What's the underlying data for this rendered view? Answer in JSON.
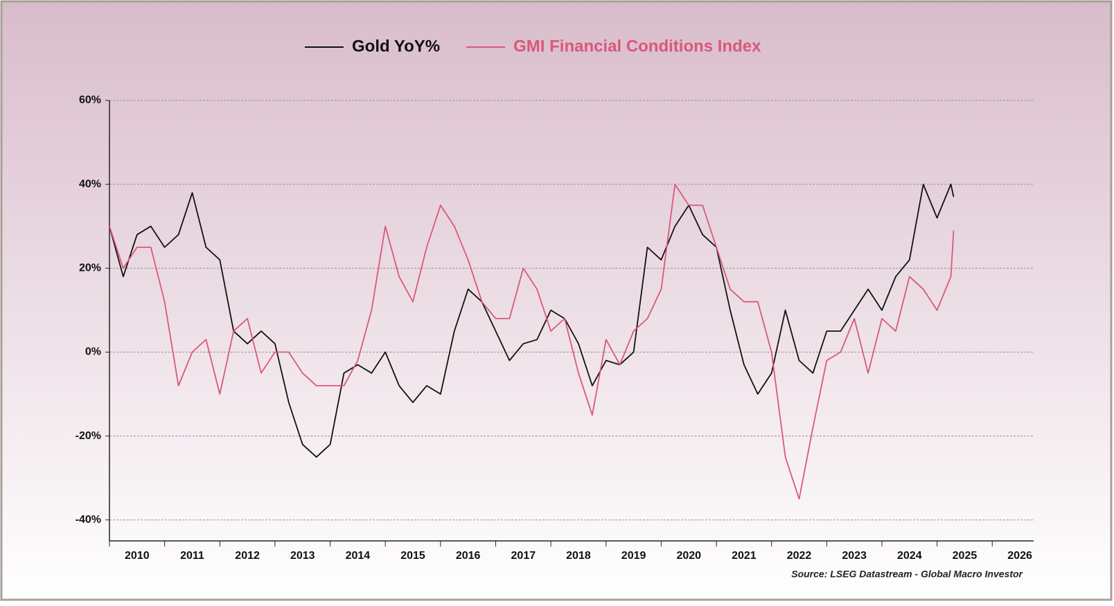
{
  "chart_data": {
    "type": "line",
    "x": [
      2010,
      2010.25,
      2010.5,
      2010.75,
      2011,
      2011.25,
      2011.5,
      2011.75,
      2012,
      2012.25,
      2012.5,
      2012.75,
      2013,
      2013.25,
      2013.5,
      2013.75,
      2014,
      2014.25,
      2014.5,
      2014.75,
      2015,
      2015.25,
      2015.5,
      2015.75,
      2016,
      2016.25,
      2016.5,
      2016.75,
      2017,
      2017.25,
      2017.5,
      2017.75,
      2018,
      2018.25,
      2018.5,
      2018.75,
      2019,
      2019.25,
      2019.5,
      2019.75,
      2020,
      2020.25,
      2020.5,
      2020.75,
      2021,
      2021.25,
      2021.5,
      2021.75,
      2022,
      2022.25,
      2022.5,
      2022.75,
      2023,
      2023.25,
      2023.5,
      2023.75,
      2024,
      2024.25,
      2024.5,
      2024.75,
      2025,
      2025.25,
      2025.3
    ],
    "series": [
      {
        "name": "Gold YoY%",
        "color": "#111111",
        "values": [
          30,
          18,
          28,
          30,
          25,
          28,
          38,
          25,
          22,
          5,
          2,
          5,
          2,
          -12,
          -22,
          -25,
          -22,
          -5,
          -3,
          -5,
          0,
          -8,
          -12,
          -8,
          -10,
          5,
          15,
          12,
          5,
          -2,
          2,
          3,
          10,
          8,
          2,
          -8,
          -2,
          -3,
          0,
          25,
          22,
          30,
          35,
          28,
          25,
          10,
          -3,
          -10,
          -5,
          10,
          -2,
          -5,
          5,
          5,
          10,
          15,
          10,
          18,
          22,
          40,
          32,
          40,
          37
        ]
      },
      {
        "name": "GMI Financial Conditions Index",
        "color": "#d9587a",
        "values": [
          30,
          20,
          25,
          25,
          12,
          -8,
          0,
          3,
          -10,
          5,
          8,
          -5,
          0,
          0,
          -5,
          -8,
          -8,
          -8,
          -2,
          10,
          30,
          18,
          12,
          25,
          35,
          30,
          22,
          12,
          8,
          8,
          20,
          15,
          5,
          8,
          -5,
          -15,
          3,
          -3,
          5,
          8,
          15,
          40,
          35,
          35,
          25,
          15,
          12,
          12,
          0,
          -25,
          -35,
          -18,
          -2,
          0,
          8,
          -5,
          8,
          5,
          18,
          15,
          10,
          18,
          29
        ]
      }
    ],
    "xlim": [
      2010,
      2026.75
    ],
    "xticks": [
      2010,
      2011,
      2012,
      2013,
      2014,
      2015,
      2016,
      2017,
      2018,
      2019,
      2020,
      2021,
      2022,
      2023,
      2024,
      2025,
      2026
    ],
    "ylim": [
      -45,
      60
    ],
    "yticks": [
      {
        "value": -40,
        "label": "-40%"
      },
      {
        "value": -20,
        "label": "-20%"
      },
      {
        "value": 0,
        "label": "0%"
      },
      {
        "value": 20,
        "label": "20%"
      },
      {
        "value": 40,
        "label": "40%"
      },
      {
        "value": 60,
        "label": "60%"
      }
    ],
    "grid": true,
    "source": "Source: LSEG Datastream - Global Macro Investor"
  }
}
